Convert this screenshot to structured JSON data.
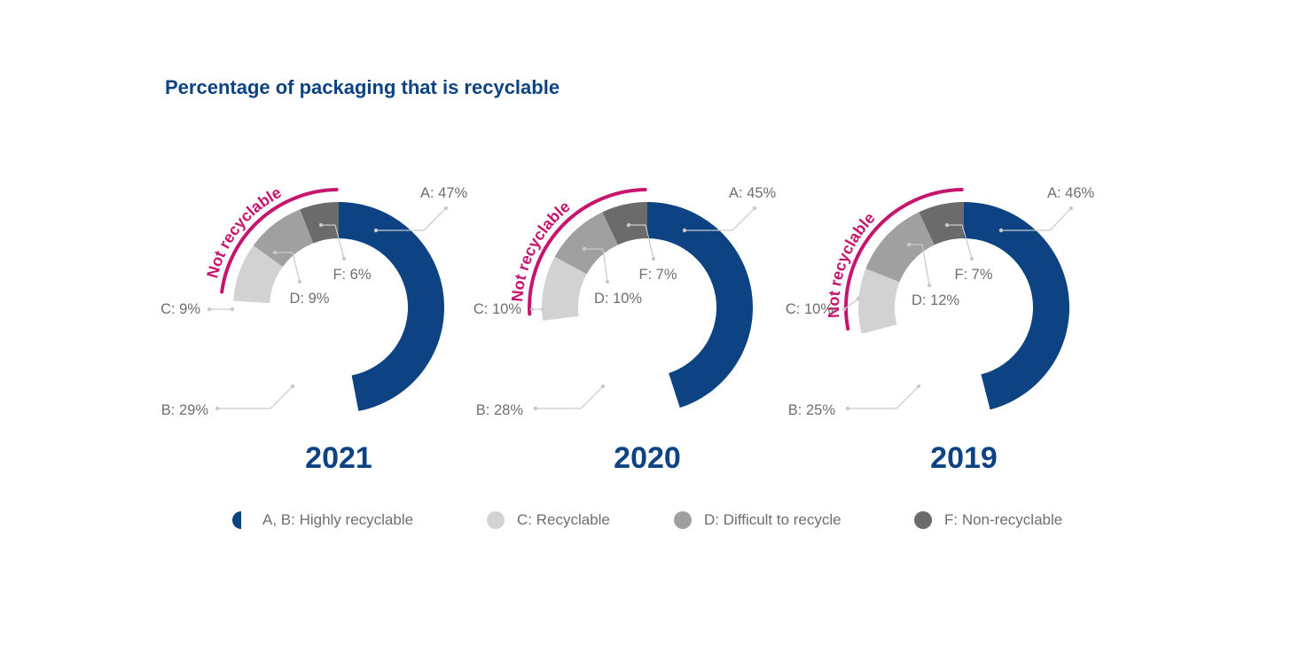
{
  "title": "Percentage of packaging that is recyclable",
  "colors": {
    "highly_recyclable": "#0d4383",
    "recyclable": "#d2d2d2",
    "difficult": "#a0a0a0",
    "non_recyclable": "#6b6b6b",
    "highlight": "#c6156e",
    "leader": "#c9c9c9",
    "label_text": "#6e6e6e",
    "title": "#0d4383"
  },
  "highlight_label": "Not recyclable",
  "legend": [
    {
      "label": "A, B: Highly recyclable",
      "color": "#0d4383",
      "shape": "half-circle"
    },
    {
      "label": "C: Recyclable",
      "color": "#d2d2d2",
      "shape": "circle"
    },
    {
      "label": "D: Difficult to recycle",
      "color": "#a0a0a0",
      "shape": "circle"
    },
    {
      "label": "F: Non-recyclable",
      "color": "#6b6b6b",
      "shape": "circle"
    }
  ],
  "chart_data": [
    {
      "type": "pie",
      "title": "2021",
      "slices": [
        {
          "label": "A: 47%",
          "category": "A",
          "value": 47,
          "color": "#0d4383"
        },
        {
          "label": "B: 29%",
          "category": "B",
          "value": 29,
          "color": "#ffffff"
        },
        {
          "label": "C: 9%",
          "category": "C",
          "value": 9,
          "color": "#d2d2d2"
        },
        {
          "label": "D: 9%",
          "category": "D",
          "value": 9,
          "color": "#a0a0a0"
        },
        {
          "label": "F: 6%",
          "category": "F",
          "value": 6,
          "color": "#6b6b6b"
        }
      ]
    },
    {
      "type": "pie",
      "title": "2020",
      "slices": [
        {
          "label": "A: 45%",
          "category": "A",
          "value": 45,
          "color": "#0d4383"
        },
        {
          "label": "B: 28%",
          "category": "B",
          "value": 28,
          "color": "#ffffff"
        },
        {
          "label": "C: 10%",
          "category": "C",
          "value": 10,
          "color": "#d2d2d2"
        },
        {
          "label": "D: 10%",
          "category": "D",
          "value": 10,
          "color": "#a0a0a0"
        },
        {
          "label": "F: 7%",
          "category": "F",
          "value": 7,
          "color": "#6b6b6b"
        }
      ]
    },
    {
      "type": "pie",
      "title": "2019",
      "slices": [
        {
          "label": "A: 46%",
          "category": "A",
          "value": 46,
          "color": "#0d4383"
        },
        {
          "label": "B: 25%",
          "category": "B",
          "value": 25,
          "color": "#ffffff"
        },
        {
          "label": "C: 10%",
          "category": "C",
          "value": 10,
          "color": "#d2d2d2"
        },
        {
          "label": "D: 12%",
          "category": "D",
          "value": 12,
          "color": "#a0a0a0"
        },
        {
          "label": "F: 7%",
          "category": "F",
          "value": 7,
          "color": "#6b6b6b"
        }
      ]
    }
  ]
}
